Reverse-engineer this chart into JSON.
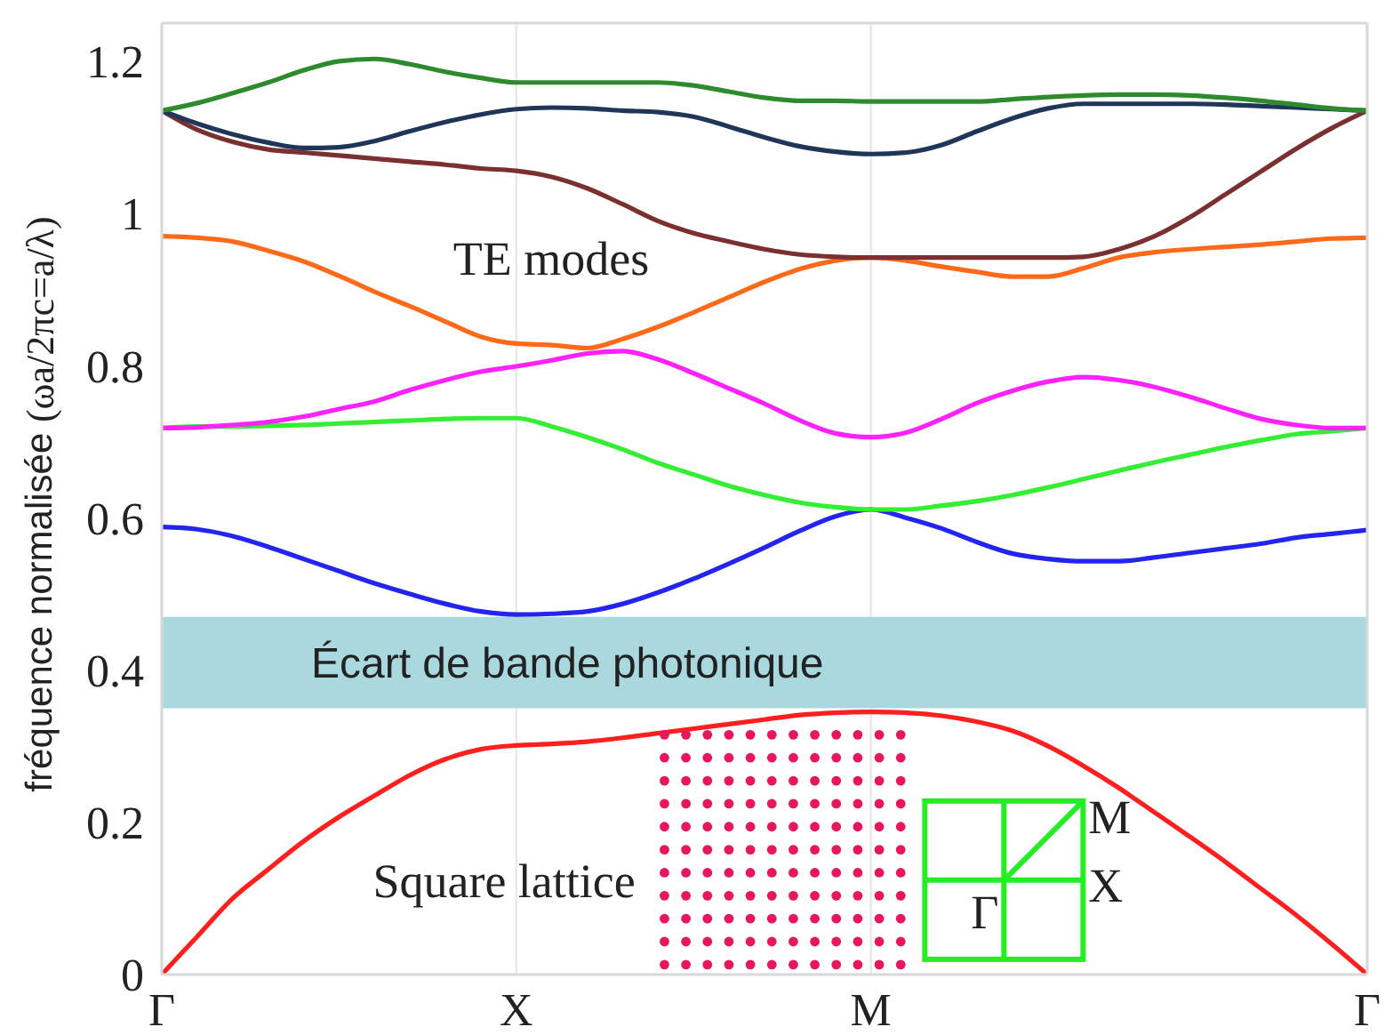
{
  "chart_data": {
    "type": "line",
    "ylabel": "fréquence normalisée  (ωa/2πc=a/λ)",
    "annotations": [
      "TE modes",
      "Square lattice",
      "M",
      "X",
      "Γ"
    ],
    "categories": [
      "Γ",
      null,
      null,
      null,
      null,
      null,
      null,
      null,
      null,
      null,
      "X",
      null,
      null,
      null,
      null,
      null,
      null,
      null,
      null,
      null,
      "M",
      null,
      null,
      null,
      null,
      null,
      null,
      null,
      null,
      null,
      null,
      null,
      null,
      null,
      "Γ"
    ],
    "ylim": [
      0,
      1.25
    ],
    "yticks": [
      0,
      0.2,
      0.4,
      0.6,
      0.8,
      1,
      1.2
    ],
    "grid": "x",
    "bands": [
      {
        "axis": "y",
        "from": 0.35,
        "to": 0.47,
        "label": "Écart de bande photonique",
        "color": "#a9d9de"
      }
    ],
    "series": [
      {
        "color": "#ff1f1f",
        "values": [
          0,
          0.05,
          0.1,
          0.138,
          0.175,
          0.207,
          0.235,
          0.262,
          0.283,
          0.296,
          0.301,
          0.303,
          0.306,
          0.311,
          0.317,
          0.323,
          0.329,
          0.335,
          0.341,
          0.344,
          0.345,
          0.344,
          0.34,
          0.332,
          0.32,
          0.3,
          0.274,
          0.245,
          0.213,
          0.181,
          0.148,
          0.113,
          0.078,
          0.04,
          0
        ]
      },
      {
        "color": "#2424f0",
        "values": [
          0.588,
          0.585,
          0.576,
          0.562,
          0.546,
          0.53,
          0.514,
          0.5,
          0.487,
          0.477,
          0.473,
          0.474,
          0.477,
          0.487,
          0.502,
          0.52,
          0.54,
          0.561,
          0.583,
          0.602,
          0.611,
          0.6,
          0.586,
          0.568,
          0.553,
          0.546,
          0.543,
          0.543,
          0.548,
          0.554,
          0.56,
          0.566,
          0.574,
          0.579,
          0.584
        ]
      },
      {
        "color": "#33ee33",
        "values": [
          0.718,
          0.72,
          0.72,
          0.721,
          0.722,
          0.724,
          0.726,
          0.728,
          0.73,
          0.731,
          0.731,
          0.72,
          0.706,
          0.69,
          0.672,
          0.657,
          0.642,
          0.63,
          0.62,
          0.614,
          0.611,
          0.611,
          0.616,
          0.622,
          0.63,
          0.64,
          0.651,
          0.662,
          0.673,
          0.683,
          0.693,
          0.702,
          0.71,
          0.714,
          0.718
        ]
      },
      {
        "color": "#ff22ff",
        "values": [
          0.718,
          0.719,
          0.722,
          0.726,
          0.733,
          0.743,
          0.753,
          0.768,
          0.781,
          0.792,
          0.799,
          0.807,
          0.816,
          0.819,
          0.808,
          0.79,
          0.77,
          0.75,
          0.728,
          0.711,
          0.706,
          0.712,
          0.73,
          0.751,
          0.767,
          0.779,
          0.785,
          0.781,
          0.772,
          0.759,
          0.744,
          0.73,
          0.722,
          0.718,
          0.718
        ]
      },
      {
        "color": "#ff6a1a",
        "values": [
          0.97,
          0.968,
          0.963,
          0.951,
          0.937,
          0.918,
          0.897,
          0.878,
          0.858,
          0.838,
          0.829,
          0.827,
          0.823,
          0.835,
          0.851,
          0.87,
          0.89,
          0.91,
          0.927,
          0.938,
          0.942,
          0.938,
          0.93,
          0.923,
          0.917,
          0.917,
          0.928,
          0.942,
          0.949,
          0.953,
          0.956,
          0.959,
          0.963,
          0.967,
          0.968
        ]
      },
      {
        "color": "#7b2f2f",
        "values": [
          1.135,
          1.11,
          1.094,
          1.084,
          1.08,
          1.076,
          1.072,
          1.068,
          1.064,
          1.059,
          1.056,
          1.048,
          1.033,
          1.012,
          0.99,
          0.974,
          0.963,
          0.953,
          0.946,
          0.943,
          0.942,
          0.942,
          0.942,
          0.942,
          0.942,
          0.942,
          0.943,
          0.953,
          0.97,
          0.995,
          1.025,
          1.055,
          1.085,
          1.112,
          1.135
        ]
      },
      {
        "color": "#1f3658",
        "values": [
          1.135,
          1.118,
          1.104,
          1.093,
          1.086,
          1.087,
          1.095,
          1.108,
          1.12,
          1.13,
          1.137,
          1.139,
          1.138,
          1.135,
          1.133,
          1.127,
          1.114,
          1.1,
          1.088,
          1.081,
          1.078,
          1.08,
          1.09,
          1.108,
          1.125,
          1.138,
          1.144,
          1.144,
          1.144,
          1.144,
          1.143,
          1.141,
          1.139,
          1.137,
          1.135
        ]
      },
      {
        "color": "#2d8a2d",
        "values": [
          1.135,
          1.145,
          1.158,
          1.172,
          1.188,
          1.2,
          1.203,
          1.196,
          1.186,
          1.178,
          1.172,
          1.172,
          1.172,
          1.172,
          1.172,
          1.168,
          1.16,
          1.152,
          1.148,
          1.148,
          1.147,
          1.147,
          1.147,
          1.147,
          1.15,
          1.153,
          1.155,
          1.156,
          1.156,
          1.155,
          1.152,
          1.148,
          1.143,
          1.138,
          1.135
        ]
      }
    ]
  }
}
